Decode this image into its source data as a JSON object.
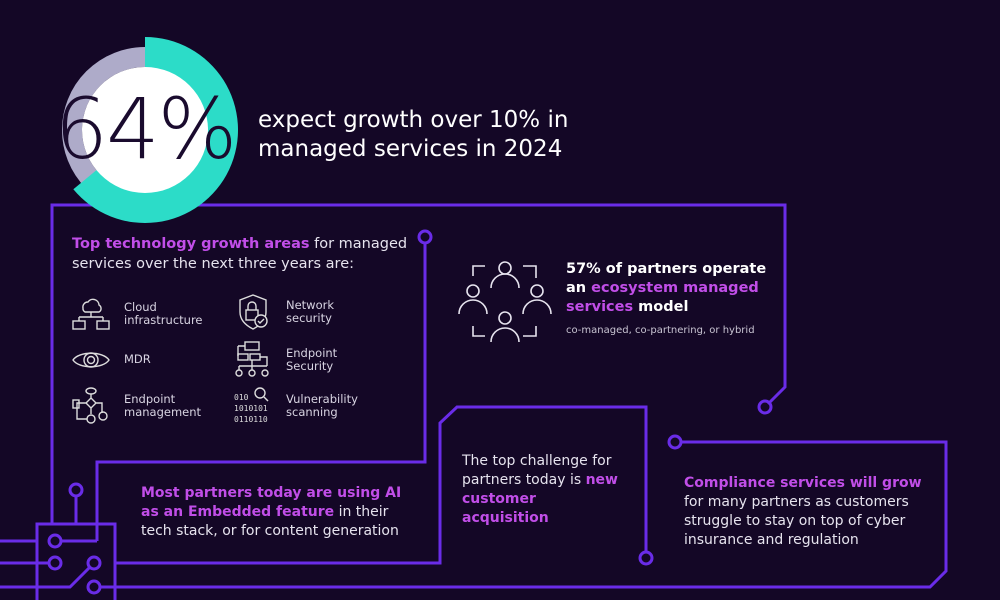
{
  "colors": {
    "background": "#140726",
    "circuit": "#6a2ce8",
    "highlight": "#c14ee8",
    "donut_fill": "#2cdcc8",
    "donut_track": "#aeabc9"
  },
  "stat": {
    "value_text": "64%",
    "percent": 64,
    "headline_line1": "expect growth over 10% in",
    "headline_line2": "managed services in 2024"
  },
  "growth": {
    "intro_highlight": "Top technology growth areas",
    "intro_rest": " for managed services over the next three years are:",
    "items": [
      {
        "icon": "cloud-network-icon",
        "label": "Cloud infrastructure"
      },
      {
        "icon": "shield-lock-icon",
        "label": "Network security"
      },
      {
        "icon": "eye-icon",
        "label": "MDR"
      },
      {
        "icon": "hierarchy-icon",
        "label": "Endpoint Security"
      },
      {
        "icon": "flowchart-icon",
        "label": "Endpoint management"
      },
      {
        "icon": "binary-search-icon",
        "label": "Vulnerability scanning"
      }
    ]
  },
  "partners": {
    "icon": "people-group-icon",
    "text1": "57% of partners operate an ",
    "highlight": "ecosystem managed services",
    "text2": " model",
    "sub": "co-managed, co-partnering, or hybrid"
  },
  "ai": {
    "highlight": "Most partners today are using AI as an Embedded feature",
    "rest": " in their tech stack, or for content generation"
  },
  "challenge": {
    "text": "The top challenge for partners today is ",
    "highlight": "new customer acquisition"
  },
  "compliance": {
    "highlight": "Compliance services will grow",
    "rest": " for many partners as customers struggle to stay on top of cyber insurance and regulation"
  }
}
